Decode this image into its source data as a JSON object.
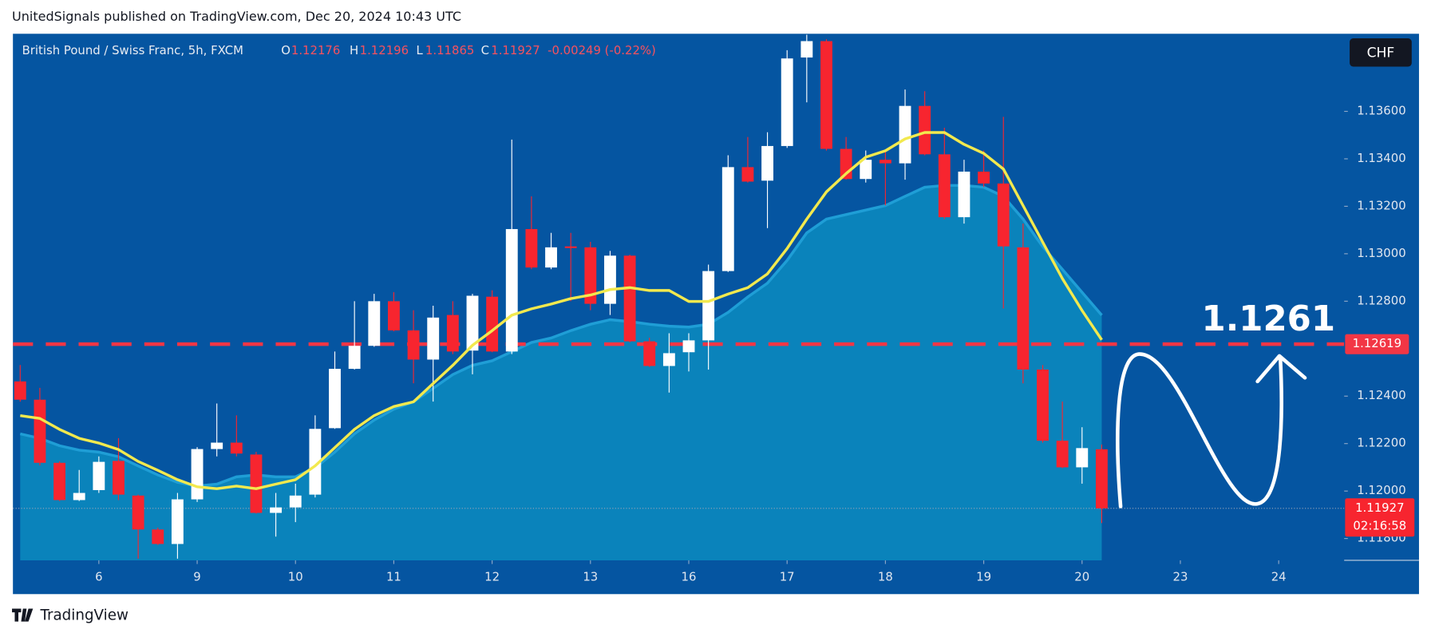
{
  "header": {
    "attribution": "UnitedSignals published on TradingView.com, Dec 20, 2024 10:43 UTC"
  },
  "footer": {
    "brand": "TradingView"
  },
  "chart_data": {
    "type": "candlestick",
    "legend": {
      "symbol": "British Pound / Swiss Franc, 5h, FXCM",
      "o_label": "O",
      "open": "1.12176",
      "h_label": "H",
      "high": "1.12196",
      "l_label": "L",
      "low": "1.11865",
      "c_label": "C",
      "close": "1.11927",
      "change": "-0.00249 (-0.22%)"
    },
    "currency": "CHF",
    "open": [
      1.12462,
      1.12385,
      1.12119,
      1.11962,
      1.12004,
      1.12127,
      1.11981,
      1.11838,
      1.11777,
      1.11965,
      1.12177,
      1.12204,
      1.12154,
      1.11908,
      1.11931,
      1.11985,
      1.12265,
      1.12515,
      1.12612,
      1.128,
      1.12677,
      1.12554,
      1.12742,
      1.12592,
      1.12819,
      1.12588,
      1.13104,
      1.12942,
      1.13031,
      1.13027,
      1.12789,
      1.12992,
      1.12631,
      1.12527,
      1.12585,
      1.12635,
      1.12927,
      1.13365,
      1.13308,
      1.13454,
      1.13827,
      1.13896,
      1.13442,
      1.13315,
      1.13396,
      1.13381,
      1.13623,
      1.13419,
      1.13154,
      1.13346,
      1.13296,
      1.13027,
      1.12512,
      1.12212,
      1.121,
      1.12176
    ],
    "high": [
      1.12531,
      1.12435,
      1.12125,
      1.12089,
      1.12146,
      1.12223,
      1.11985,
      1.11846,
      1.11992,
      1.12185,
      1.12369,
      1.12319,
      1.12165,
      1.11992,
      1.12031,
      1.12319,
      1.12588,
      1.128,
      1.12831,
      1.12838,
      1.12762,
      1.12781,
      1.128,
      1.12831,
      1.12846,
      1.13481,
      1.13242,
      1.13088,
      1.13088,
      1.1305,
      1.13012,
      1.12996,
      1.12646,
      1.12665,
      1.12665,
      1.12954,
      1.13415,
      1.13492,
      1.13512,
      1.13858,
      1.13923,
      1.13904,
      1.13492,
      1.13435,
      1.13435,
      1.13692,
      1.13685,
      1.13531,
      1.13396,
      1.13435,
      1.13577,
      1.13127,
      1.12531,
      1.12377,
      1.12269,
      1.12196
    ],
    "low": [
      1.12377,
      1.12108,
      1.11958,
      1.11958,
      1.11992,
      1.11962,
      1.11715,
      1.11773,
      1.11715,
      1.11954,
      1.12146,
      1.12146,
      1.11905,
      1.11808,
      1.11869,
      1.11973,
      1.12262,
      1.12512,
      1.12608,
      1.12673,
      1.12454,
      1.12377,
      1.12577,
      1.12492,
      1.12585,
      1.12577,
      1.12935,
      1.12935,
      1.128,
      1.12762,
      1.12742,
      1.12627,
      1.12523,
      1.12415,
      1.12504,
      1.12512,
      1.12923,
      1.133,
      1.13108,
      1.13446,
      1.13638,
      1.13435,
      1.13312,
      1.133,
      1.13204,
      1.13312,
      1.13415,
      1.13146,
      1.13127,
      1.13281,
      1.12769,
      1.12454,
      1.12204,
      1.12096,
      1.12031,
      1.11865
    ],
    "close": [
      1.12385,
      1.12119,
      1.11962,
      1.11992,
      1.12123,
      1.11985,
      1.11838,
      1.11777,
      1.11965,
      1.12177,
      1.12204,
      1.12158,
      1.11908,
      1.11931,
      1.11981,
      1.12262,
      1.12515,
      1.12612,
      1.128,
      1.12677,
      1.12554,
      1.12731,
      1.12588,
      1.12823,
      1.12588,
      1.13104,
      1.12942,
      1.13027,
      1.13024,
      1.12789,
      1.12992,
      1.12631,
      1.12527,
      1.12581,
      1.12635,
      1.12927,
      1.13365,
      1.13304,
      1.13454,
      1.13823,
      1.13896,
      1.13442,
      1.13315,
      1.13396,
      1.13381,
      1.13623,
      1.13419,
      1.13154,
      1.13346,
      1.13296,
      1.13031,
      1.12512,
      1.12212,
      1.121,
      1.12181,
      1.11927
    ],
    "up_color": "#ffffff",
    "down_color": "#f7252f",
    "lines": [
      {
        "color": "#f2e94e",
        "values": [
          1.12318,
          1.12306,
          1.1226,
          1.12222,
          1.12202,
          1.12175,
          1.12125,
          1.12087,
          1.12048,
          1.12018,
          1.1201,
          1.12021,
          1.1201,
          1.12029,
          1.12048,
          1.12106,
          1.12183,
          1.1226,
          1.12318,
          1.12356,
          1.12376,
          1.12453,
          1.1253,
          1.12614,
          1.12676,
          1.12741,
          1.12768,
          1.12788,
          1.12811,
          1.12826,
          1.12849,
          1.12857,
          1.12845,
          1.12845,
          1.12799,
          1.12799,
          1.1283,
          1.12857,
          1.12915,
          1.13022,
          1.13146,
          1.13261,
          1.13338,
          1.13407,
          1.13434,
          1.13484,
          1.13511,
          1.13511,
          1.13461,
          1.13423,
          1.13357,
          1.13203,
          1.13049,
          1.12895,
          1.12761,
          1.12637
        ]
      }
    ],
    "area": {
      "color": "#0a83bb",
      "line_color": "#1f9ed6",
      "values": [
        1.12241,
        1.12222,
        1.12191,
        1.12172,
        1.12164,
        1.12145,
        1.12106,
        1.12068,
        1.12037,
        1.12021,
        1.12029,
        1.1206,
        1.12068,
        1.1206,
        1.1206,
        1.12098,
        1.12164,
        1.12241,
        1.12299,
        1.12345,
        1.12376,
        1.12433,
        1.12491,
        1.1253,
        1.12549,
        1.12587,
        1.12626,
        1.12645,
        1.12676,
        1.12703,
        1.12722,
        1.12714,
        1.12703,
        1.12695,
        1.12691,
        1.12703,
        1.12753,
        1.12818,
        1.12876,
        1.12972,
        1.13088,
        1.13146,
        1.13165,
        1.13184,
        1.13203,
        1.13242,
        1.1328,
        1.13288,
        1.13288,
        1.1328,
        1.13242,
        1.13146,
        1.1303,
        1.12934,
        1.12838,
        1.12741
      ]
    },
    "xlim": [
      -0.37,
      67.33
    ],
    "xticks": [
      {
        "value": 4,
        "label": "6"
      },
      {
        "value": 9,
        "label": "9"
      },
      {
        "value": 14,
        "label": "10"
      },
      {
        "value": 19,
        "label": "11"
      },
      {
        "value": 24,
        "label": "12"
      },
      {
        "value": 29,
        "label": "13"
      },
      {
        "value": 34,
        "label": "16"
      },
      {
        "value": 39,
        "label": "17"
      },
      {
        "value": 44,
        "label": "18"
      },
      {
        "value": 49,
        "label": "19"
      },
      {
        "value": 54,
        "label": "20"
      },
      {
        "value": 59,
        "label": "23"
      },
      {
        "value": 64,
        "label": "24"
      }
    ],
    "ylim": [
      1.11708,
      1.13927
    ],
    "yticks": [
      {
        "value": 1.118,
        "label": "1.11800"
      },
      {
        "value": 1.12,
        "label": "1.12000"
      },
      {
        "value": 1.122,
        "label": "1.12200"
      },
      {
        "value": 1.124,
        "label": "1.12400"
      },
      {
        "value": 1.128,
        "label": "1.12800"
      },
      {
        "value": 1.13,
        "label": "1.13000"
      },
      {
        "value": 1.132,
        "label": "1.13200"
      },
      {
        "value": 1.134,
        "label": "1.13400"
      },
      {
        "value": 1.136,
        "label": "1.13600"
      }
    ],
    "hline": {
      "value": 1.12619,
      "label": "1.12619",
      "color": "#f23645"
    },
    "last": {
      "value": 1.11927,
      "label": "1.11927",
      "countdown": "02:16:58"
    },
    "annotation": {
      "text": "1.1261"
    }
  }
}
